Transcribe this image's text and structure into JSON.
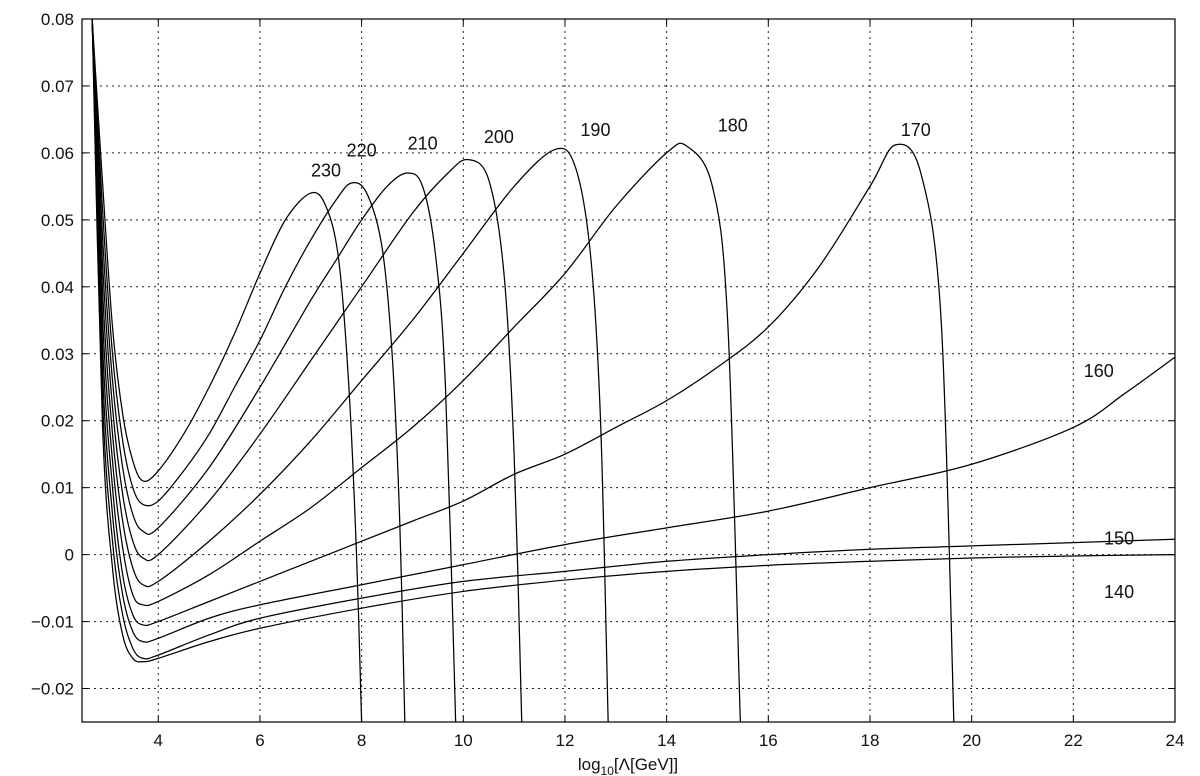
{
  "chart_data": {
    "type": "line",
    "title": "",
    "xlabel": "log10[Λ[GeV]]",
    "xlabel_parts": {
      "pre": "log",
      "sub": "10",
      "post": "[Λ[GeV]]"
    },
    "ylabel": "",
    "xlim": [
      2.5,
      24
    ],
    "ylim": [
      -0.025,
      0.08
    ],
    "grid": true,
    "x_ticks": [
      4,
      6,
      8,
      10,
      12,
      14,
      16,
      18,
      20,
      22,
      24
    ],
    "y_ticks": [
      0.08,
      0.07,
      0.06,
      0.05,
      0.04,
      0.03,
      0.02,
      0.01,
      0,
      -0.01,
      -0.02
    ],
    "x_tick_labels": [
      "4",
      "6",
      "8",
      "10",
      "12",
      "14",
      "16",
      "18",
      "20",
      "22",
      "24"
    ],
    "y_tick_labels": [
      "0.08",
      "0.07",
      "0.06",
      "0.05",
      "0.04",
      "0.03",
      "0.02",
      "0.01",
      "0",
      "−0.01",
      "−0.02"
    ],
    "series": [
      {
        "name": "230",
        "label_at": [
          7.3,
          0.0565
        ],
        "x": [
          2.7,
          2.9,
          3.1,
          3.3,
          3.5,
          3.7,
          4,
          4.5,
          5,
          5.5,
          6,
          6.5,
          7,
          7.3,
          7.55,
          7.75,
          7.9,
          8.0
        ],
        "y": [
          0.08,
          0.056,
          0.034,
          0.021,
          0.014,
          0.011,
          0.0125,
          0.018,
          0.025,
          0.033,
          0.042,
          0.05,
          0.054,
          0.052,
          0.044,
          0.025,
          0.0,
          -0.025
        ]
      },
      {
        "name": "220",
        "label_at": [
          8.0,
          0.0595
        ],
        "x": [
          2.7,
          2.9,
          3.1,
          3.3,
          3.5,
          3.7,
          4,
          4.5,
          5,
          5.5,
          6,
          6.5,
          7,
          7.5,
          7.8,
          8.1,
          8.4,
          8.6,
          8.75,
          8.85
        ],
        "y": [
          0.08,
          0.052,
          0.03,
          0.017,
          0.01,
          0.0075,
          0.008,
          0.0125,
          0.018,
          0.025,
          0.032,
          0.04,
          0.047,
          0.053,
          0.0555,
          0.054,
          0.046,
          0.03,
          0.005,
          -0.025
        ]
      },
      {
        "name": "210",
        "label_at": [
          9.2,
          0.0605
        ],
        "x": [
          2.7,
          2.9,
          3.1,
          3.3,
          3.5,
          3.7,
          4,
          5,
          6,
          7,
          7.5,
          8,
          8.5,
          8.9,
          9.2,
          9.45,
          9.65,
          9.85
        ],
        "y": [
          0.08,
          0.048,
          0.026,
          0.013,
          0.006,
          0.0035,
          0.004,
          0.013,
          0.025,
          0.038,
          0.044,
          0.05,
          0.055,
          0.057,
          0.055,
          0.045,
          0.025,
          -0.025
        ]
      },
      {
        "name": "200",
        "label_at": [
          10.7,
          0.0615
        ],
        "x": [
          2.7,
          2.9,
          3.1,
          3.3,
          3.5,
          3.7,
          4,
          5,
          6,
          7,
          8,
          9,
          9.7,
          10.1,
          10.5,
          10.8,
          11.0,
          11.15
        ],
        "y": [
          0.08,
          0.044,
          0.022,
          0.009,
          0.002,
          -0.0005,
          0.0,
          0.008,
          0.018,
          0.029,
          0.04,
          0.051,
          0.057,
          0.059,
          0.056,
          0.042,
          0.015,
          -0.025
        ]
      },
      {
        "name": "190",
        "label_at": [
          12.6,
          0.0625
        ],
        "x": [
          2.7,
          2.9,
          3.1,
          3.3,
          3.5,
          3.7,
          4,
          5,
          6,
          7,
          8,
          9,
          10,
          11,
          11.8,
          12.2,
          12.5,
          12.7,
          12.85
        ],
        "y": [
          0.08,
          0.04,
          0.018,
          0.005,
          -0.002,
          -0.0045,
          -0.004,
          0.002,
          0.009,
          0.017,
          0.026,
          0.035,
          0.045,
          0.055,
          0.0605,
          0.058,
          0.045,
          0.02,
          -0.025
        ]
      },
      {
        "name": "180",
        "label_at": [
          15.3,
          0.0632
        ],
        "x": [
          2.7,
          2.9,
          3.1,
          3.3,
          3.5,
          3.7,
          4,
          5,
          6,
          7,
          8,
          9,
          10,
          11,
          12,
          13,
          14,
          14.4,
          14.9,
          15.2,
          15.45
        ],
        "y": [
          0.08,
          0.036,
          0.014,
          0.001,
          -0.006,
          -0.0075,
          -0.007,
          -0.003,
          0.002,
          0.007,
          0.013,
          0.019,
          0.026,
          0.034,
          0.042,
          0.052,
          0.06,
          0.061,
          0.055,
          0.035,
          -0.025
        ]
      },
      {
        "name": "170",
        "label_at": [
          18.9,
          0.0625
        ],
        "x": [
          2.7,
          2.9,
          3.1,
          3.3,
          3.5,
          3.7,
          4,
          5,
          6,
          7,
          8,
          9,
          10,
          11,
          12,
          13,
          14,
          15,
          16,
          17,
          18,
          18.5,
          19.0,
          19.4,
          19.65
        ],
        "y": [
          0.08,
          0.032,
          0.01,
          -0.003,
          -0.009,
          -0.0105,
          -0.01,
          -0.007,
          -0.004,
          -0.001,
          0.002,
          0.005,
          0.008,
          0.012,
          0.015,
          0.019,
          0.023,
          0.028,
          0.034,
          0.043,
          0.055,
          0.0612,
          0.057,
          0.035,
          -0.025
        ]
      },
      {
        "name": "160",
        "label_at": [
          22.5,
          0.0265
        ],
        "x": [
          2.7,
          2.9,
          3.1,
          3.3,
          3.5,
          3.7,
          4,
          5,
          6,
          8,
          10,
          12,
          14,
          16,
          18,
          20,
          22,
          23,
          24
        ],
        "y": [
          0.08,
          0.028,
          0.006,
          -0.006,
          -0.0115,
          -0.013,
          -0.0125,
          -0.0095,
          -0.0075,
          -0.0045,
          -0.0015,
          0.0015,
          0.004,
          0.0065,
          0.01,
          0.0135,
          0.019,
          0.024,
          0.0295
        ]
      },
      {
        "name": "150",
        "label_at": [
          22.9,
          0.0015
        ],
        "x": [
          2.7,
          2.9,
          3.1,
          3.3,
          3.5,
          3.7,
          4,
          5,
          6,
          8,
          10,
          12,
          14,
          16,
          18,
          20,
          22,
          24
        ],
        "y": [
          0.08,
          0.024,
          0.002,
          -0.009,
          -0.014,
          -0.0155,
          -0.015,
          -0.012,
          -0.0095,
          -0.0065,
          -0.004,
          -0.0025,
          -0.001,
          0.0,
          0.0008,
          0.0013,
          0.0018,
          0.0023
        ]
      },
      {
        "name": "140",
        "label_at": [
          22.9,
          -0.0065
        ],
        "x": [
          2.7,
          2.9,
          3.1,
          3.3,
          3.5,
          3.7,
          4,
          5,
          6,
          8,
          10,
          12,
          14,
          16,
          18,
          20,
          22,
          24
        ],
        "y": [
          0.08,
          0.02,
          -0.002,
          -0.012,
          -0.0155,
          -0.016,
          -0.0155,
          -0.013,
          -0.011,
          -0.008,
          -0.0055,
          -0.0038,
          -0.0025,
          -0.0016,
          -0.001,
          -0.0005,
          -0.0002,
          0.0
        ]
      }
    ]
  }
}
